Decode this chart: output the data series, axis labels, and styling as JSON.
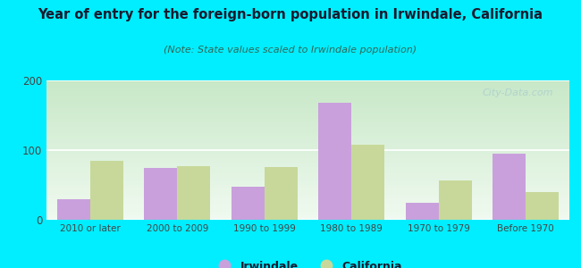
{
  "title": "Year of entry for the foreign-born population in Irwindale, California",
  "subtitle": "(Note: State values scaled to Irwindale population)",
  "categories": [
    "2010 or later",
    "2000 to 2009",
    "1990 to 1999",
    "1980 to 1989",
    "1970 to 1979",
    "Before 1970"
  ],
  "irwindale": [
    30,
    75,
    47,
    168,
    24,
    95
  ],
  "california": [
    85,
    77,
    76,
    108,
    57,
    40
  ],
  "irwindale_color": "#c9a0dc",
  "california_color": "#c8d89a",
  "background_outer": "#00eeff",
  "background_inner": "#e8f5e0",
  "ylim": [
    0,
    200
  ],
  "yticks": [
    0,
    100,
    200
  ],
  "bar_width": 0.38,
  "legend_irwindale": "Irwindale",
  "legend_california": "California",
  "watermark": "City-Data.com",
  "title_color": "#1a1a2e",
  "subtitle_color": "#336655",
  "tick_color": "#444444"
}
